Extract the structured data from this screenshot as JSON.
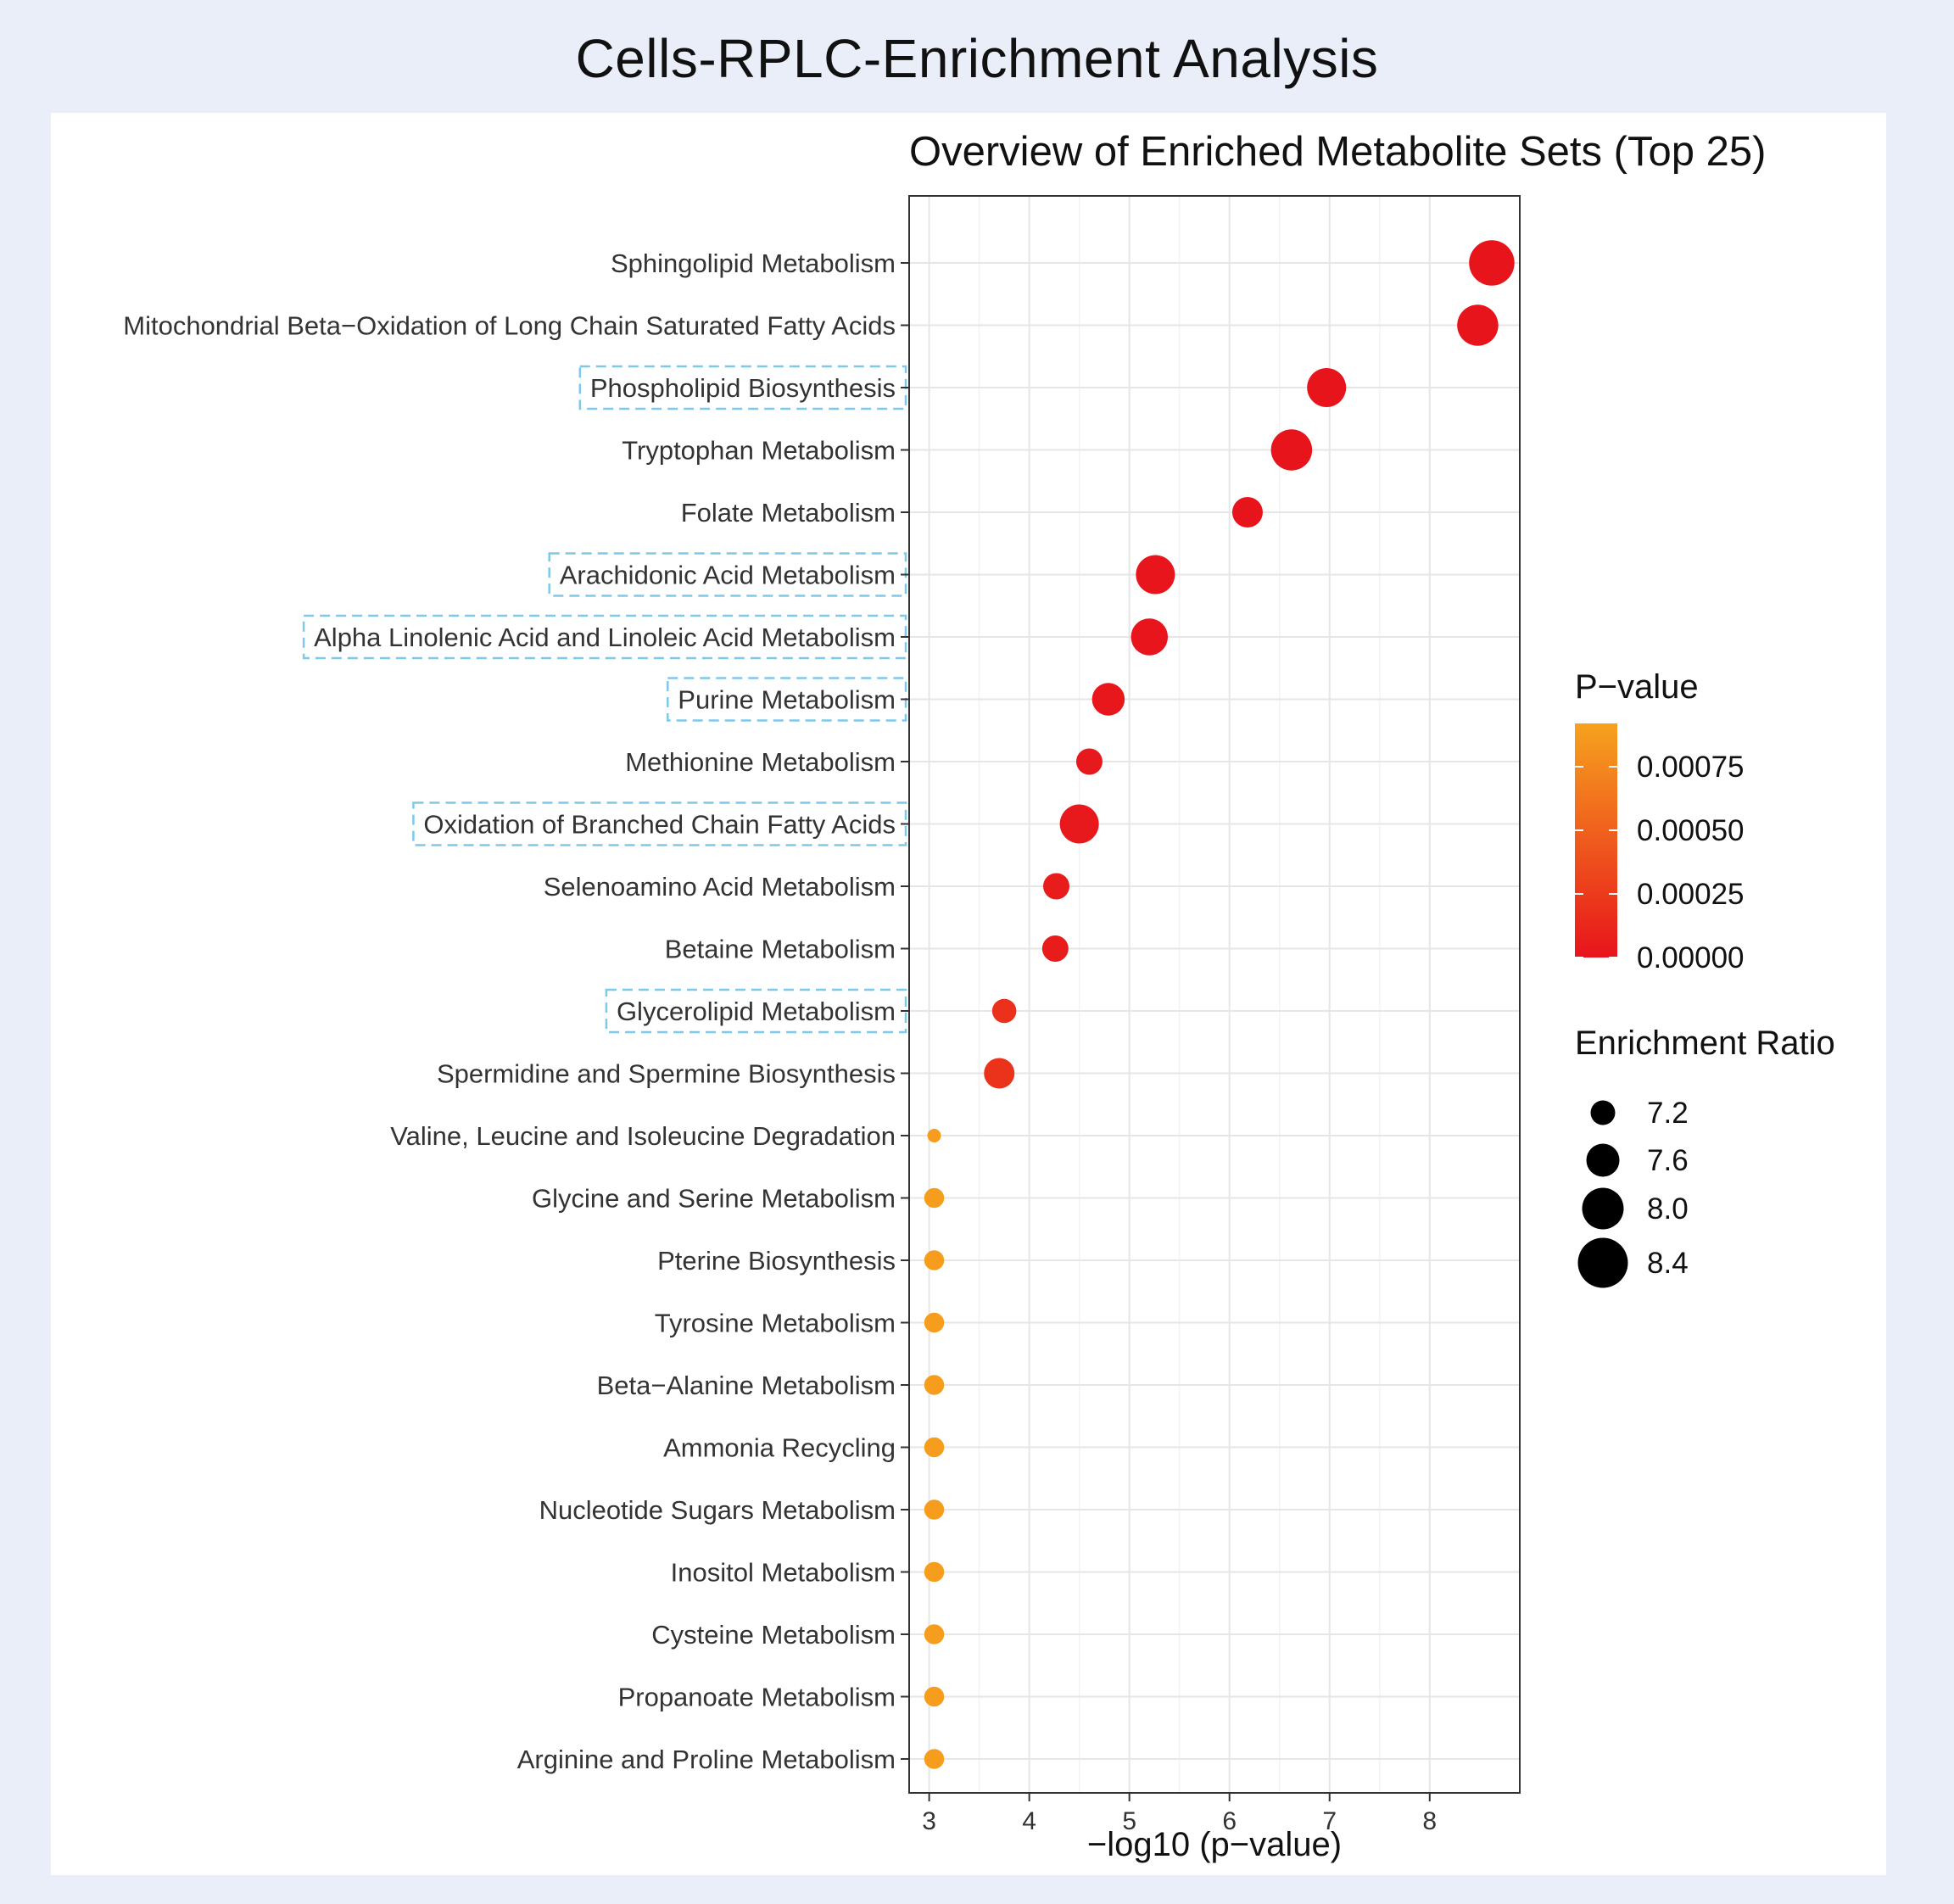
{
  "page": {
    "title": "Cells-RPLC-Enrichment Analysis"
  },
  "chart_data": {
    "type": "scatter",
    "title": "Overview of Enriched Metabolite Sets (Top 25)",
    "xlabel": "−log10 (p−value)",
    "ylabel": "",
    "xlim": [
      2.8,
      8.9
    ],
    "xticks": [
      "3",
      "4",
      "5",
      "6",
      "7",
      "8"
    ],
    "grid": true,
    "categories": [
      "Sphingolipid Metabolism",
      "Mitochondrial Beta−Oxidation of Long Chain Saturated Fatty Acids",
      "Phospholipid Biosynthesis",
      "Tryptophan Metabolism",
      "Folate Metabolism",
      "Arachidonic Acid Metabolism",
      "Alpha Linolenic Acid and Linoleic Acid Metabolism",
      "Purine Metabolism",
      "Methionine Metabolism",
      "Oxidation of Branched Chain Fatty Acids",
      "Selenoamino Acid Metabolism",
      "Betaine Metabolism",
      "Glycerolipid Metabolism",
      "Spermidine and Spermine Biosynthesis",
      "Valine, Leucine and Isoleucine Degradation",
      "Glycine and Serine Metabolism",
      "Pterine Biosynthesis",
      "Tyrosine Metabolism",
      "Beta−Alanine Metabolism",
      "Ammonia Recycling",
      "Nucleotide Sugars Metabolism",
      "Inositol Metabolism",
      "Cysteine Metabolism",
      "Propanoate Metabolism",
      "Arginine and Proline Metabolism"
    ],
    "neg_log10_p": [
      8.62,
      8.48,
      6.97,
      6.62,
      6.18,
      5.26,
      5.2,
      4.79,
      4.6,
      4.5,
      4.27,
      4.26,
      3.75,
      3.7,
      3.05,
      3.05,
      3.05,
      3.05,
      3.05,
      3.05,
      3.05,
      3.05,
      3.05,
      3.05,
      3.05
    ],
    "p_value": [
      0.0,
      0.0,
      0.0,
      0.0,
      0.0,
      1e-05,
      1e-05,
      2e-05,
      3e-05,
      3e-05,
      5e-05,
      5e-05,
      0.00018,
      0.0002,
      0.00089,
      0.00089,
      0.00089,
      0.00089,
      0.00089,
      0.00089,
      0.00089,
      0.00089,
      0.00089,
      0.00089,
      0.00089
    ],
    "enrichment_ratio": [
      8.5,
      8.3,
      8.2,
      8.3,
      7.8,
      8.2,
      8.1,
      7.9,
      7.6,
      8.2,
      7.6,
      7.6,
      7.5,
      7.8,
      7.0,
      7.3,
      7.3,
      7.3,
      7.3,
      7.3,
      7.3,
      7.3,
      7.3,
      7.3,
      7.3
    ],
    "highlighted": [
      "Phospholipid Biosynthesis",
      "Arachidonic Acid Metabolism",
      "Alpha Linolenic Acid and Linoleic Acid Metabolism",
      "Purine Metabolism",
      "Oxidation of Branched Chain Fatty Acids",
      "Glycerolipid Metabolism"
    ],
    "highlight_color": "#7ec8ea",
    "color_legend": {
      "title": "P−value",
      "labels": [
        "0.00075",
        "0.00050",
        "0.00025",
        "0.00000"
      ],
      "values": [
        0.00075,
        0.0005,
        0.00025,
        0.0
      ],
      "range": [
        0.0,
        0.00092
      ],
      "low_color": "#e8141c",
      "high_color": "#f6a21e"
    },
    "size_legend": {
      "title": "Enrichment Ratio",
      "labels": [
        "7.2",
        "7.6",
        "8.0",
        "8.4"
      ],
      "values": [
        7.2,
        7.6,
        8.0,
        8.4
      ]
    },
    "legend_position": "right"
  }
}
